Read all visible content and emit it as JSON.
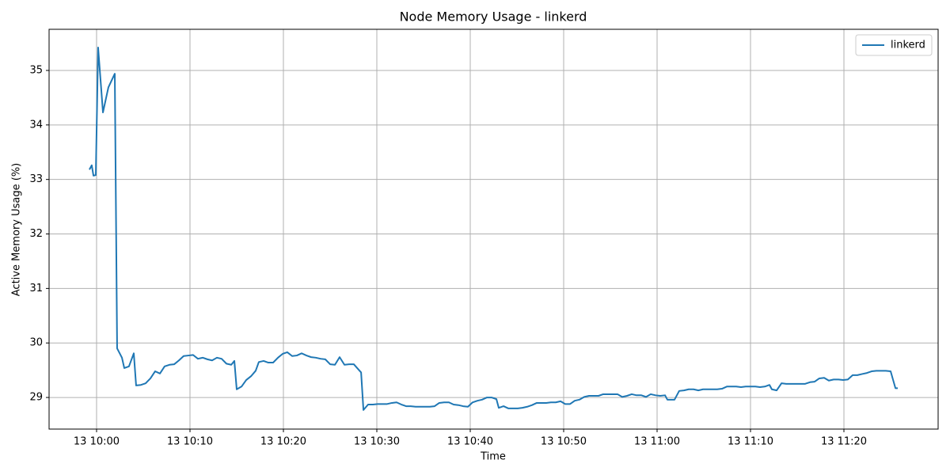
{
  "chart_data": {
    "type": "line",
    "title": "Node Memory Usage - linkerd",
    "x_label": "Time",
    "y_label": "Active Memory Usage (%)",
    "x": [
      "13 09:59:14",
      "13 09:59:29",
      "13 09:59:40",
      "13 09:59:55",
      "13 10:00:10",
      "13 10:00:41",
      "13 10:01:16",
      "13 10:01:57",
      "13 10:02:12",
      "13 10:02:43",
      "13 10:02:58",
      "13 10:03:28",
      "13 10:03:59",
      "13 10:04:14",
      "13 10:04:45",
      "13 10:05:15",
      "13 10:05:46",
      "13 10:06:16",
      "13 10:06:47",
      "13 10:07:17",
      "13 10:07:48",
      "13 10:08:19",
      "13 10:08:49",
      "13 10:09:19",
      "13 10:09:50",
      "13 10:10:20",
      "13 10:10:51",
      "13 10:11:22",
      "13 10:11:52",
      "13 10:12:22",
      "13 10:12:53",
      "13 10:13:23",
      "13 10:13:54",
      "13 10:14:25",
      "13 10:14:45",
      "13 10:15:00",
      "13 10:15:31",
      "13 10:16:01",
      "13 10:16:32",
      "13 10:17:02",
      "13 10:17:22",
      "13 10:17:53",
      "13 10:18:23",
      "13 10:18:54",
      "13 10:19:25",
      "13 10:19:55",
      "13 10:20:25",
      "13 10:20:56",
      "13 10:21:26",
      "13 10:21:57",
      "13 10:22:28",
      "13 10:22:58",
      "13 10:23:28",
      "13 10:23:59",
      "13 10:24:29",
      "13 10:25:00",
      "13 10:25:31",
      "13 10:26:01",
      "13 10:26:32",
      "13 10:27:02",
      "13 10:27:32",
      "13 10:28:03",
      "13 10:28:19",
      "13 10:28:34",
      "13 10:29:04",
      "13 10:29:35",
      "13 10:30:05",
      "13 10:30:35",
      "13 10:31:06",
      "13 10:31:37",
      "13 10:32:07",
      "13 10:32:38",
      "13 10:33:08",
      "13 10:33:38",
      "13 10:34:09",
      "13 10:34:40",
      "13 10:35:10",
      "13 10:35:41",
      "13 10:36:11",
      "13 10:36:41",
      "13 10:37:12",
      "13 10:37:43",
      "13 10:38:13",
      "13 10:38:44",
      "13 10:39:14",
      "13 10:39:45",
      "13 10:40:15",
      "13 10:40:46",
      "13 10:41:16",
      "13 10:41:47",
      "13 10:42:17",
      "13 10:42:48",
      "13 10:43:03",
      "13 10:43:34",
      "13 10:44:04",
      "13 10:44:35",
      "13 10:45:05",
      "13 10:45:35",
      "13 10:46:06",
      "13 10:46:37",
      "13 10:47:07",
      "13 10:47:38",
      "13 10:48:08",
      "13 10:48:38",
      "13 10:49:09",
      "13 10:49:40",
      "13 10:50:10",
      "13 10:50:41",
      "13 10:51:11",
      "13 10:51:41",
      "13 10:52:12",
      "13 10:52:43",
      "13 10:53:13",
      "13 10:53:44",
      "13 10:54:14",
      "13 10:54:45",
      "13 10:55:15",
      "13 10:55:46",
      "13 10:56:16",
      "13 10:56:47",
      "13 10:57:17",
      "13 10:57:48",
      "13 10:58:19",
      "13 10:58:49",
      "13 10:59:19",
      "13 10:59:50",
      "13 11:00:20",
      "13 11:00:51",
      "13 11:01:06",
      "13 11:01:52",
      "13 11:02:22",
      "13 11:02:53",
      "13 11:03:23",
      "13 11:03:54",
      "13 11:04:25",
      "13 11:04:55",
      "13 11:05:25",
      "13 11:05:56",
      "13 11:06:26",
      "13 11:06:57",
      "13 11:07:28",
      "13 11:07:58",
      "13 11:08:28",
      "13 11:08:59",
      "13 11:09:29",
      "13 11:10:00",
      "13 11:10:31",
      "13 11:11:01",
      "13 11:11:32",
      "13 11:12:02",
      "13 11:12:17",
      "13 11:12:48",
      "13 11:13:19",
      "13 11:13:49",
      "13 11:14:19",
      "13 11:14:50",
      "13 11:15:20",
      "13 11:15:51",
      "13 11:16:22",
      "13 11:16:52",
      "13 11:17:22",
      "13 11:17:53",
      "13 11:18:23",
      "13 11:18:54",
      "13 11:19:25",
      "13 11:19:55",
      "13 11:20:25",
      "13 11:20:56",
      "13 11:21:26",
      "13 11:21:57",
      "13 11:22:28",
      "13 11:22:58",
      "13 11:23:28",
      "13 11:23:59",
      "13 11:24:29",
      "13 11:25:00",
      "13 11:25:31",
      "13 11:25:46"
    ],
    "series": [
      {
        "name": "linkerd",
        "color": "#1f77b4",
        "values": [
          33.18,
          33.26,
          33.07,
          33.08,
          35.42,
          34.23,
          34.69,
          34.94,
          29.9,
          29.73,
          29.54,
          29.57,
          29.81,
          29.22,
          29.23,
          29.26,
          29.35,
          29.48,
          29.44,
          29.57,
          29.6,
          29.61,
          29.68,
          29.76,
          29.77,
          29.78,
          29.71,
          29.73,
          29.7,
          29.68,
          29.73,
          29.71,
          29.62,
          29.6,
          29.67,
          29.15,
          29.2,
          29.32,
          29.39,
          29.49,
          29.65,
          29.67,
          29.64,
          29.64,
          29.73,
          29.8,
          29.83,
          29.76,
          29.77,
          29.81,
          29.77,
          29.74,
          29.73,
          29.71,
          29.7,
          29.61,
          29.6,
          29.74,
          29.6,
          29.61,
          29.61,
          29.51,
          29.46,
          28.77,
          28.87,
          28.87,
          28.88,
          28.88,
          28.88,
          28.9,
          28.91,
          28.87,
          28.84,
          28.84,
          28.83,
          28.83,
          28.83,
          28.83,
          28.84,
          28.9,
          28.91,
          28.91,
          28.87,
          28.86,
          28.84,
          28.83,
          28.91,
          28.94,
          28.96,
          29.0,
          29.0,
          28.97,
          28.81,
          28.84,
          28.8,
          28.8,
          28.8,
          28.81,
          28.83,
          28.86,
          28.9,
          28.9,
          28.9,
          28.91,
          28.91,
          28.93,
          28.88,
          28.88,
          28.94,
          28.96,
          29.01,
          29.03,
          29.03,
          29.03,
          29.06,
          29.06,
          29.06,
          29.06,
          29.01,
          29.03,
          29.06,
          29.04,
          29.04,
          29.01,
          29.06,
          29.04,
          29.03,
          29.04,
          28.96,
          28.96,
          29.12,
          29.13,
          29.15,
          29.15,
          29.13,
          29.15,
          29.15,
          29.15,
          29.15,
          29.16,
          29.2,
          29.2,
          29.2,
          29.19,
          29.2,
          29.2,
          29.2,
          29.19,
          29.2,
          29.23,
          29.15,
          29.13,
          29.26,
          29.25,
          29.25,
          29.25,
          29.25,
          29.25,
          29.28,
          29.29,
          29.35,
          29.36,
          29.31,
          29.33,
          29.33,
          29.32,
          29.33,
          29.41,
          29.41,
          29.43,
          29.45,
          29.48,
          29.49,
          29.49,
          29.49,
          29.48,
          29.17,
          29.17
        ]
      }
    ],
    "xlim": [
      "13 09:54:55",
      "13 11:30:05"
    ],
    "xticks": [
      "13 10:00",
      "13 10:10",
      "13 10:20",
      "13 10:30",
      "13 10:40",
      "13 10:50",
      "13 11:00",
      "13 11:10",
      "13 11:20"
    ],
    "ylim": [
      28.42,
      35.755
    ],
    "yticks": [
      29,
      30,
      31,
      32,
      33,
      34,
      35
    ],
    "grid": true,
    "legend": "upper right"
  }
}
